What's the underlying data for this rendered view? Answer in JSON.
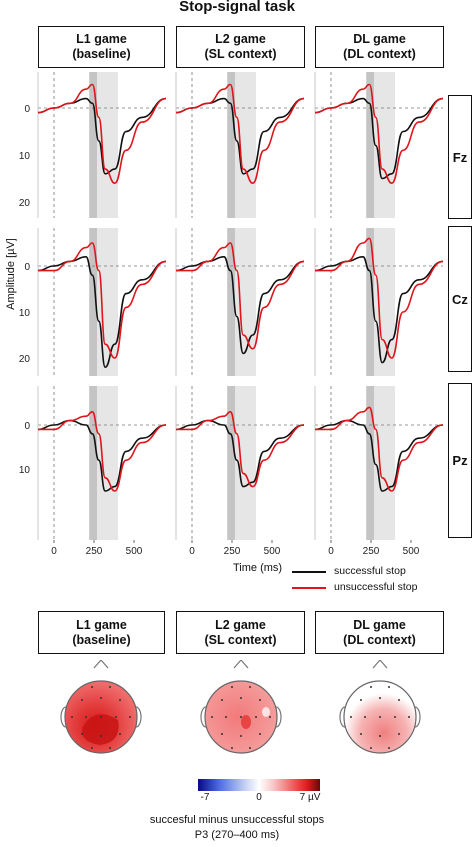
{
  "figure": {
    "title": "Stop-signal task",
    "columns": [
      {
        "line1": "L1 game",
        "line2": "(baseline)"
      },
      {
        "line1": "L2 game",
        "line2": "(SL context)"
      },
      {
        "line1": "DL game",
        "line2": "(DL context)"
      }
    ],
    "rows": [
      "Fz",
      "Cz",
      "Pz"
    ],
    "y_axis_label": "Amplitude [µV]",
    "x_axis_label": "Time (ms)"
  },
  "chart_data": {
    "type": "line",
    "x_ticks": [
      0,
      250,
      500
    ],
    "x_range": [
      -100,
      700
    ],
    "y_inverted": true,
    "y_ticks": {
      "Fz": [
        0,
        10,
        20
      ],
      "Cz": [
        0,
        10,
        20
      ],
      "Pz": [
        0,
        10
      ]
    },
    "shaded_windows": [
      {
        "from": 220,
        "to": 270,
        "shade": "dark"
      },
      {
        "from": 270,
        "to": 400,
        "shade": "light"
      }
    ],
    "legend": [
      {
        "label": "successful stop",
        "color": "#111111"
      },
      {
        "label": "unsuccessful stop",
        "color": "#e0151b"
      }
    ],
    "time_points": [
      -100,
      0,
      100,
      200,
      240,
      280,
      320,
      380,
      450,
      550,
      700
    ],
    "panels": [
      {
        "column": "L1 game",
        "row": "Fz",
        "successful_stop": [
          1,
          0,
          -1,
          -2,
          -1,
          7,
          14,
          13,
          5,
          2,
          -2
        ],
        "unsuccessful_stop": [
          1,
          0,
          -1,
          -4,
          -5,
          2,
          13,
          16,
          9,
          3,
          -2
        ]
      },
      {
        "column": "L2 game",
        "row": "Fz",
        "successful_stop": [
          1,
          0,
          -1,
          -2,
          -1,
          7,
          14,
          13,
          5,
          2,
          -2
        ],
        "unsuccessful_stop": [
          1,
          0,
          -1,
          -4,
          -5,
          2,
          13,
          16,
          9,
          3,
          -2
        ]
      },
      {
        "column": "DL game",
        "row": "Fz",
        "successful_stop": [
          1,
          0,
          -1,
          -2,
          -1,
          8,
          15,
          14,
          5,
          2,
          -2
        ],
        "unsuccessful_stop": [
          1,
          0,
          -1,
          -4,
          -5,
          2,
          13,
          16,
          9,
          3,
          -2
        ]
      },
      {
        "column": "L1 game",
        "row": "Cz",
        "successful_stop": [
          1,
          0,
          -1,
          -2,
          2,
          12,
          22,
          17,
          6,
          3,
          -1
        ],
        "unsuccessful_stop": [
          1,
          1,
          -1,
          -4,
          -5,
          1,
          17,
          20,
          9,
          4,
          -1
        ]
      },
      {
        "column": "L2 game",
        "row": "Cz",
        "successful_stop": [
          1,
          0,
          -1,
          -2,
          1,
          11,
          19,
          15,
          6,
          3,
          -1
        ],
        "unsuccessful_stop": [
          1,
          1,
          -1,
          -4,
          -5,
          1,
          15,
          18,
          9,
          4,
          -1
        ]
      },
      {
        "column": "DL game",
        "row": "Cz",
        "successful_stop": [
          1,
          0,
          -1,
          -2,
          1,
          12,
          21,
          16,
          6,
          3,
          -1
        ],
        "unsuccessful_stop": [
          1,
          1,
          -1,
          -5,
          -6,
          2,
          16,
          20,
          10,
          4,
          -1
        ]
      },
      {
        "column": "L1 game",
        "row": "Pz",
        "successful_stop": [
          1,
          0,
          -1,
          0,
          2,
          8,
          15,
          14,
          6,
          3,
          0
        ],
        "unsuccessful_stop": [
          1,
          1,
          -1,
          -2,
          -3,
          2,
          12,
          15,
          8,
          4,
          0
        ]
      },
      {
        "column": "L2 game",
        "row": "Pz",
        "successful_stop": [
          1,
          0,
          -1,
          0,
          2,
          8,
          14,
          13,
          6,
          3,
          0
        ],
        "unsuccessful_stop": [
          1,
          1,
          -1,
          -2,
          -3,
          2,
          11,
          14,
          8,
          4,
          0
        ]
      },
      {
        "column": "DL game",
        "row": "Pz",
        "successful_stop": [
          1,
          0,
          -1,
          0,
          2,
          9,
          15,
          14,
          6,
          3,
          0
        ],
        "unsuccessful_stop": [
          1,
          1,
          -1,
          -3,
          -4,
          1,
          12,
          15,
          8,
          4,
          0
        ]
      }
    ],
    "topomap": {
      "colorbar_min": "-7",
      "colorbar_mid": "0",
      "colorbar_max": "7 µV",
      "colors": [
        "#08088a",
        "#4f6fe8",
        "#cdd6f5",
        "#ffffff",
        "#f7c6c6",
        "#f25c5c",
        "#d81b1b",
        "#6b0707"
      ],
      "caption_line1": "succesful minus unsuccessful stops",
      "caption_line2": "P3 (270–400 ms)"
    }
  }
}
